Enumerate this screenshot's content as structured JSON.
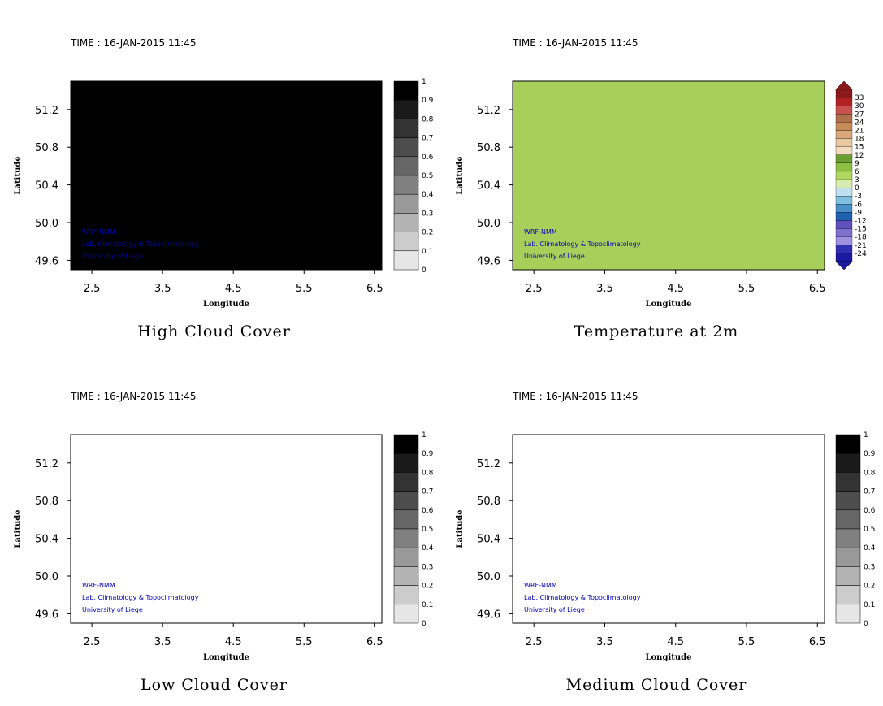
{
  "time_label": "TIME : 16-JAN-2015 11:45",
  "x_axis": {
    "label": "Longitude",
    "ticks": [
      "2.5",
      "3.5",
      "4.5",
      "5.5",
      "6.5"
    ],
    "range": [
      2.2,
      6.6
    ]
  },
  "y_axis": {
    "label": "Latitude",
    "ticks": [
      "51.2",
      "50.8",
      "50.4",
      "50.0",
      "49.6"
    ],
    "range": [
      49.5,
      51.5
    ]
  },
  "credits": [
    "WRF-NMM",
    "Lab. Climatology & Topoclimatology",
    "University of Liege"
  ],
  "cloud_colorbar": {
    "labels": [
      "1",
      "0.9",
      "0.8",
      "0.7",
      "0.6",
      "0.5",
      "0.4",
      "0.3",
      "0.2",
      "0.1",
      "0"
    ],
    "colors": [
      "#000000",
      "#1a1a1a",
      "#333333",
      "#4d4d4d",
      "#666666",
      "#808080",
      "#999999",
      "#b3b3b3",
      "#cccccc",
      "#e6e6e6"
    ]
  },
  "temp_colorbar": {
    "labels": [
      "33",
      "30",
      "27",
      "24",
      "21",
      "18",
      "15",
      "12",
      "9",
      "6",
      "3",
      "0",
      "-3",
      "-6",
      "-9",
      "-12",
      "-15",
      "-18",
      "-21",
      "-24"
    ],
    "colors": [
      "#8b1a1a",
      "#b22222",
      "#c85050",
      "#b0704a",
      "#c98a5a",
      "#d9a87a",
      "#e8c8a0",
      "#f2dcc0",
      "#6aa030",
      "#8cc040",
      "#b0d860",
      "#d8ecb0",
      "#bfe0f0",
      "#7fc0e0",
      "#4a90c8",
      "#2060b0",
      "#6050c0",
      "#8070d0",
      "#a090e0",
      "#3030b0",
      "#1a1aa0"
    ]
  },
  "panels": [
    {
      "title": "High Cloud Cover",
      "colorbar": "cloud"
    },
    {
      "title": "Temperature at 2m",
      "colorbar": "temp"
    },
    {
      "title": "Low Cloud Cover",
      "colorbar": "cloud"
    },
    {
      "title": "Medium Cloud Cover",
      "colorbar": "cloud"
    }
  ]
}
